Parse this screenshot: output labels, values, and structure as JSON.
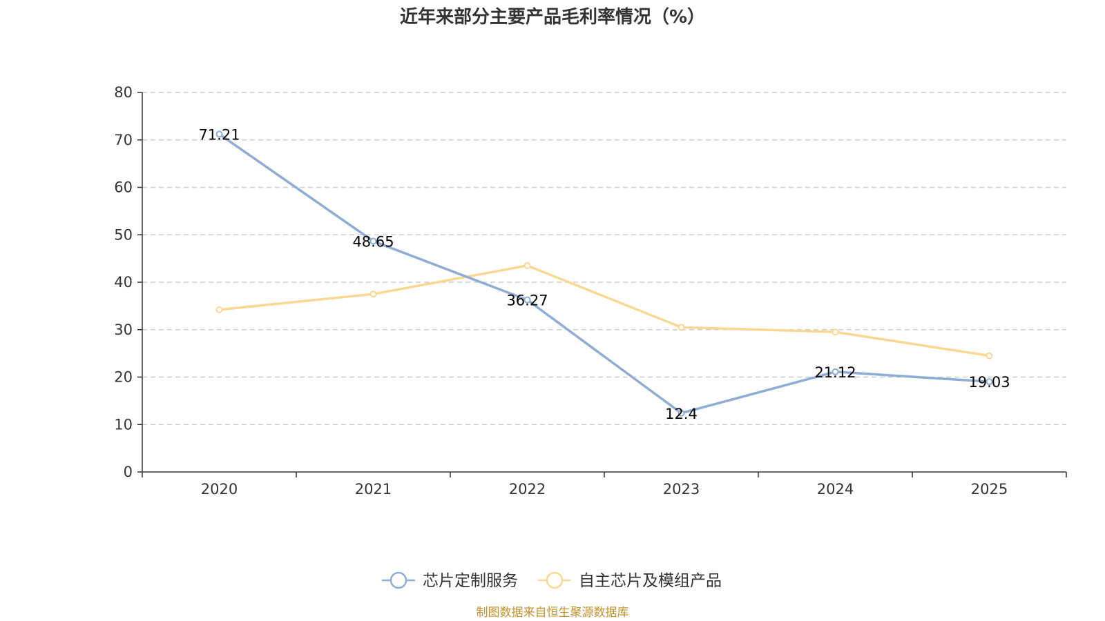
{
  "chart_data": {
    "type": "line",
    "title": "近年来部分主要产品毛利率情况（%）",
    "categories": [
      "2020",
      "2021",
      "2022",
      "2023",
      "2024",
      "2025"
    ],
    "ylim": [
      0,
      80
    ],
    "yticks": [
      0,
      10,
      20,
      30,
      40,
      50,
      60,
      70,
      80
    ],
    "grid": true,
    "legend_position": "bottom",
    "series": [
      {
        "name": "芯片定制服务",
        "color": "#8EACD6",
        "values": [
          71.21,
          48.65,
          36.27,
          12.4,
          21.12,
          19.03
        ],
        "labels": [
          "71.21",
          "48.65",
          "36.27",
          "12.4",
          "21.12",
          "19.03"
        ]
      },
      {
        "name": "自主芯片及模组产品",
        "color": "#FAD892",
        "values": [
          34.2,
          37.5,
          43.5,
          30.5,
          29.5,
          24.5
        ]
      }
    ]
  },
  "source": {
    "text": "制图数据来自恒生聚源数据库",
    "color": "#C8902A"
  },
  "colors": {
    "axis": "#333333",
    "grid": "#CCCCCC"
  }
}
